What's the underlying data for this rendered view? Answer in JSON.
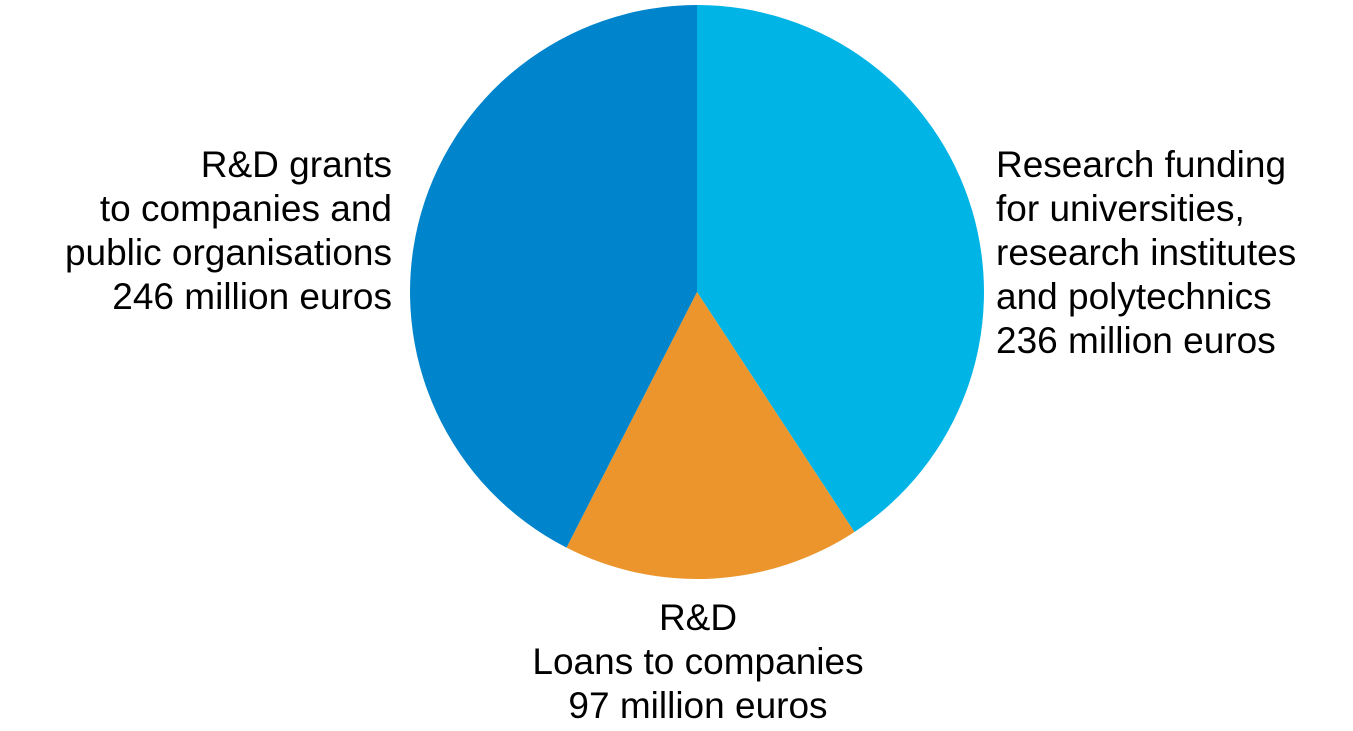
{
  "chart_data": {
    "type": "pie",
    "title": "",
    "slices": [
      {
        "label_lines": [
          "R&D grants",
          "to companies and",
          "public organisations",
          "246 million euros"
        ],
        "value": 246,
        "color": "#0085CC"
      },
      {
        "label_lines": [
          "Research funding",
          "for universities,",
          "research institutes",
          "and polytechnics",
          "236 million euros"
        ],
        "value": 236,
        "color": "#00B4E6"
      },
      {
        "label_lines": [
          "R&D",
          "Loans to companies",
          "97 million euros"
        ],
        "value": 97,
        "color": "#EB952C"
      }
    ],
    "start_angle_deg": 0,
    "direction": "clockwise-from-top: research funding, loans, grants",
    "legend": "none"
  }
}
